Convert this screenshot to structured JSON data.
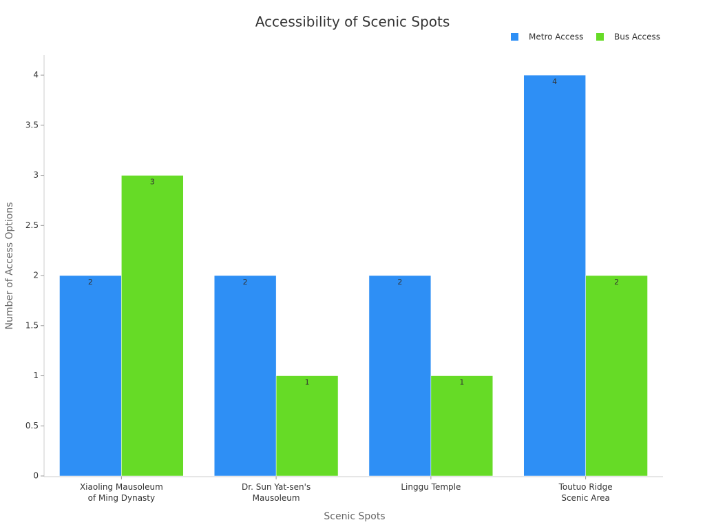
{
  "chart_data": {
    "type": "bar",
    "title": "Accessibility of Scenic Spots",
    "x_label": "Scenic Spots",
    "y_label": "Number of Access Options",
    "categories": [
      "Xiaoling Mausoleum\nof Ming Dynasty",
      "Dr. Sun Yat-sen's\nMausoleum",
      "Linggu Temple",
      "Toutuo Ridge\nScenic Area"
    ],
    "series": [
      {
        "name": "Metro Access",
        "color": "#2e8ff5",
        "values": [
          2,
          2,
          2,
          4
        ]
      },
      {
        "name": "Bus Access",
        "color": "#66db26",
        "values": [
          3,
          1,
          1,
          2
        ]
      }
    ],
    "ylim": [
      0,
      4.2
    ],
    "yticks": [
      0,
      0.5,
      1,
      1.5,
      2,
      2.5,
      3,
      3.5,
      4
    ],
    "legend": "top-right"
  }
}
